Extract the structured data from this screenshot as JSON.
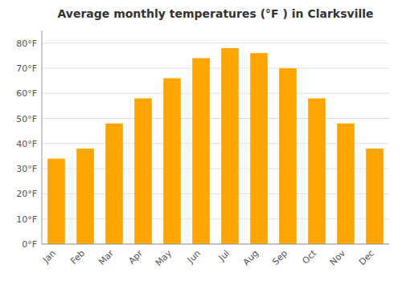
{
  "chart_data": {
    "type": "bar",
    "title": "Average monthly temperatures (°F ) in Clarksville",
    "categories": [
      "Jan",
      "Feb",
      "Mar",
      "Apr",
      "May",
      "Jun",
      "Jul",
      "Aug",
      "Sep",
      "Oct",
      "Nov",
      "Dec"
    ],
    "values": [
      34,
      38,
      48,
      58,
      66,
      74,
      78,
      76,
      70,
      58,
      48,
      38
    ],
    "color": "#FFA500",
    "ylim": [
      0,
      85
    ],
    "yticks": [
      {
        "value": 0,
        "label": "0°F"
      },
      {
        "value": 10,
        "label": "10°F"
      },
      {
        "value": 20,
        "label": "20°F"
      },
      {
        "value": 30,
        "label": "30°F"
      },
      {
        "value": 40,
        "label": "40°F"
      },
      {
        "value": 50,
        "label": "50°F"
      },
      {
        "value": 60,
        "label": "60°F"
      },
      {
        "value": 70,
        "label": "70°F"
      },
      {
        "value": 80,
        "label": "80°F"
      }
    ],
    "grid": true
  }
}
